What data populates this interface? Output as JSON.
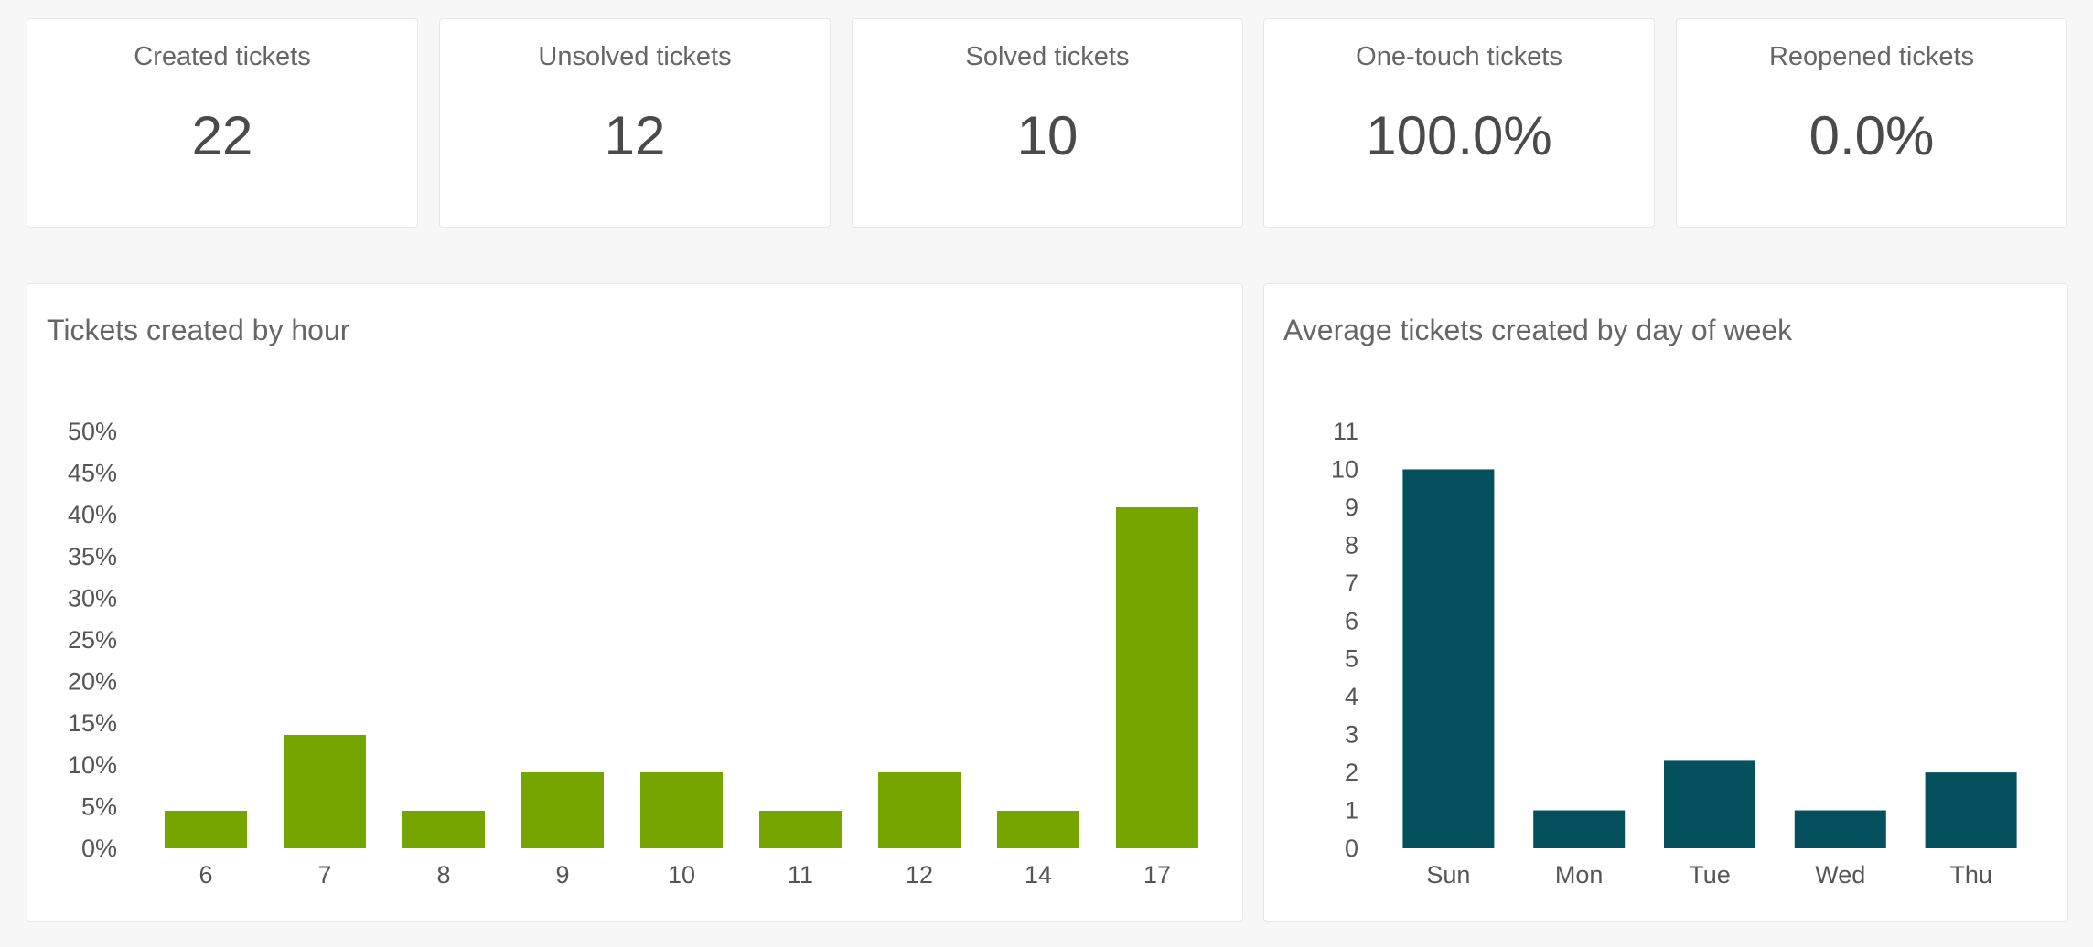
{
  "kpis": [
    {
      "label": "Created tickets",
      "value": "22"
    },
    {
      "label": "Unsolved tickets",
      "value": "12"
    },
    {
      "label": "Solved tickets",
      "value": "10"
    },
    {
      "label": "One-touch tickets",
      "value": "100.0%"
    },
    {
      "label": "Reopened tickets",
      "value": "0.0%"
    }
  ],
  "chart_data": [
    {
      "type": "bar",
      "title": "Tickets created by hour",
      "categories": [
        "6",
        "7",
        "8",
        "9",
        "10",
        "11",
        "12",
        "14",
        "17"
      ],
      "values": [
        4.5,
        13.6,
        4.5,
        9.1,
        9.1,
        4.5,
        9.1,
        4.5,
        40.9
      ],
      "ylim": [
        0,
        50
      ],
      "yticks": [
        "0%",
        "5%",
        "10%",
        "15%",
        "20%",
        "25%",
        "30%",
        "35%",
        "40%",
        "45%",
        "50%"
      ],
      "color": "#76a500",
      "grid": false
    },
    {
      "type": "bar",
      "title": "Average tickets created by day of week",
      "categories": [
        "Sun",
        "Mon",
        "Tue",
        "Wed",
        "Thu"
      ],
      "values": [
        10,
        1,
        2.33,
        1,
        2
      ],
      "ylim": [
        0,
        11
      ],
      "yticks": [
        "0",
        "1",
        "2",
        "3",
        "4",
        "5",
        "6",
        "7",
        "8",
        "9",
        "10",
        "11"
      ],
      "color": "#04505c",
      "grid": false
    }
  ]
}
